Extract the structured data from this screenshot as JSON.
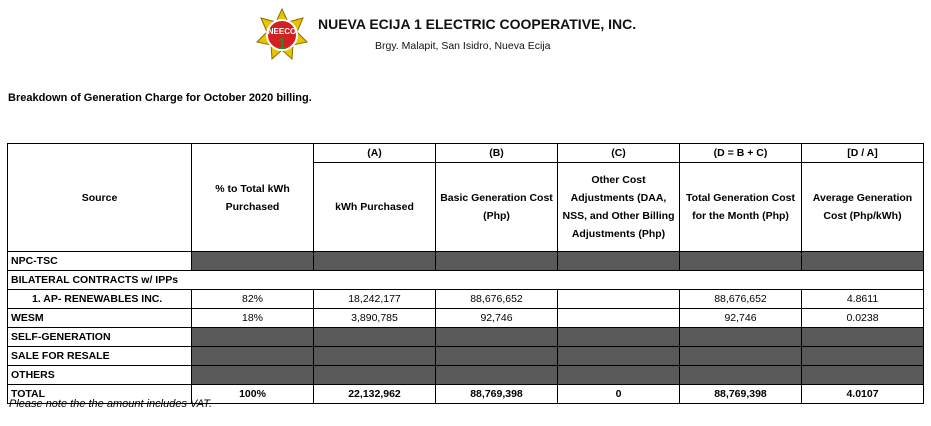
{
  "header": {
    "logo": {
      "text": "NEECO",
      "number": "1"
    },
    "org_name": "NUEVA ECIJA 1 ELECTRIC COOPERATIVE, INC.",
    "address": "Brgy. Malapit, San Isidro, Nueva Ecija"
  },
  "heading": "Breakdown of Generation Charge  for October 2020 billing.",
  "table": {
    "columns": [
      {
        "label": "Source"
      },
      {
        "label": "% to Total kWh Purchased"
      },
      {
        "letter": "(A)",
        "label": "kWh Purchased"
      },
      {
        "letter": "(B)",
        "label": "Basic Generation Cost (Php)"
      },
      {
        "letter": "(C)",
        "label": "Other Cost Adjustments (DAA, NSS, and Other Billing Adjustments (Php)"
      },
      {
        "letter": "(D = B + C)",
        "label": "Total Generation Cost for the Month (Php)"
      },
      {
        "letter": "[D / A]",
        "label": "Average Generation Cost (Php/kWh)"
      }
    ],
    "rows": [
      {
        "source": "NPC-TSC",
        "shaded": true
      },
      {
        "source": "BILATERAL CONTRACTS w/ IPPs",
        "section": true
      },
      {
        "source": "1. AP- RENEWABLES INC.",
        "indent": true,
        "cells": [
          "82%",
          "18,242,177",
          "88,676,652",
          null,
          "88,676,652",
          "4.8611"
        ]
      },
      {
        "source": "WESM",
        "cells": [
          "18%",
          "3,890,785",
          "92,746",
          null,
          "92,746",
          "0.0238"
        ]
      },
      {
        "source": "SELF-GENERATION",
        "shaded": true
      },
      {
        "source": "SALE FOR RESALE",
        "shaded": true
      },
      {
        "source": "OTHERS",
        "shaded": true
      },
      {
        "source": "TOTAL",
        "total": true,
        "cells": [
          "100%",
          "22,132,962",
          "88,769,398",
          "0",
          "88,769,398",
          "4.0107"
        ]
      }
    ]
  },
  "note": "Please note the the amount includes VAT."
}
